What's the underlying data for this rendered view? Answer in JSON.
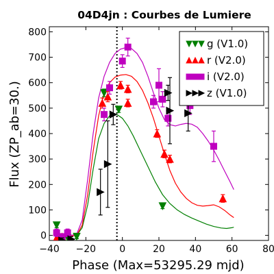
{
  "chart_data": {
    "type": "scatter",
    "title": "04D4jn : Courbes de Lumiere",
    "xlabel": "Phase (Max=53295.29 mjd)",
    "ylabel": "Flux (ZP_ab=30.)",
    "xlim": [
      -40,
      80
    ],
    "ylim": [
      -20,
      820
    ],
    "xticks": [
      -40,
      -20,
      0,
      20,
      40,
      60,
      80
    ],
    "xtick_labels": [
      "−40",
      "−20",
      "0",
      "20",
      "40",
      "60",
      "80"
    ],
    "yticks": [
      0,
      100,
      200,
      300,
      400,
      500,
      600,
      700,
      800
    ],
    "ytick_labels": [
      "0",
      "100",
      "200",
      "300",
      "400",
      "500",
      "600",
      "700",
      "800"
    ],
    "max_line_x": -3,
    "legend_position": "top-right",
    "series": [
      {
        "name": "g (V1.0)",
        "color": "#007f00",
        "marker": "triangle-down",
        "points": [
          {
            "x": -36,
            "y": 40,
            "err": 10
          },
          {
            "x": -30,
            "y": -10,
            "err": 10
          },
          {
            "x": -25,
            "y": -5,
            "err": 8
          },
          {
            "x": -10,
            "y": 560,
            "err": 15
          },
          {
            "x": -2,
            "y": 495,
            "err": 12
          },
          {
            "x": 22,
            "y": 115,
            "err": 10
          }
        ],
        "curve": [
          [
            -37,
            0
          ],
          [
            -30,
            -3
          ],
          [
            -25,
            0
          ],
          [
            -22,
            30
          ],
          [
            -19,
            120
          ],
          [
            -16,
            260
          ],
          [
            -13,
            380
          ],
          [
            -10,
            440
          ],
          [
            -7,
            470
          ],
          [
            -5,
            478
          ],
          [
            -3,
            475
          ],
          [
            0,
            460
          ],
          [
            3,
            430
          ],
          [
            6,
            390
          ],
          [
            10,
            330
          ],
          [
            14,
            270
          ],
          [
            18,
            210
          ],
          [
            22,
            160
          ],
          [
            26,
            125
          ],
          [
            30,
            100
          ],
          [
            34,
            82
          ],
          [
            38,
            68
          ],
          [
            42,
            56
          ],
          [
            46,
            44
          ],
          [
            50,
            35
          ],
          [
            54,
            29
          ],
          [
            57,
            27
          ],
          [
            60,
            30
          ],
          [
            61,
            32
          ]
        ]
      },
      {
        "name": "r (V2.0)",
        "color": "#ff0000",
        "marker": "triangle-up",
        "points": [
          {
            "x": -36,
            "y": -10,
            "err": 10
          },
          {
            "x": -33,
            "y": -5,
            "err": 10
          },
          {
            "x": -11,
            "y": 520,
            "err": 20
          },
          {
            "x": -8,
            "y": 545,
            "err": 20
          },
          {
            "x": -1,
            "y": 590,
            "err": 15
          },
          {
            "x": 3,
            "y": 575,
            "err": 15
          },
          {
            "x": 3,
            "y": 520,
            "err": 15
          },
          {
            "x": 19,
            "y": 400,
            "err": 15
          },
          {
            "x": 23,
            "y": 320,
            "err": 15
          },
          {
            "x": 26,
            "y": 300,
            "err": 15
          },
          {
            "x": 55,
            "y": 145,
            "err": 15
          }
        ],
        "curve": [
          [
            -37,
            0
          ],
          [
            -30,
            -3
          ],
          [
            -25,
            0
          ],
          [
            -22,
            40
          ],
          [
            -19,
            160
          ],
          [
            -16,
            330
          ],
          [
            -13,
            470
          ],
          [
            -10,
            560
          ],
          [
            -7,
            600
          ],
          [
            -4,
            622
          ],
          [
            -1,
            630
          ],
          [
            2,
            632
          ],
          [
            5,
            625
          ],
          [
            8,
            605
          ],
          [
            11,
            570
          ],
          [
            14,
            520
          ],
          [
            17,
            460
          ],
          [
            20,
            390
          ],
          [
            23,
            320
          ],
          [
            26,
            255
          ],
          [
            29,
            205
          ],
          [
            32,
            170
          ],
          [
            35,
            145
          ],
          [
            38,
            128
          ],
          [
            41,
            118
          ],
          [
            44,
            115
          ],
          [
            47,
            117
          ],
          [
            50,
            120
          ],
          [
            53,
            112
          ],
          [
            56,
            98
          ],
          [
            59,
            80
          ],
          [
            61,
            70
          ]
        ]
      },
      {
        "name": "i (V2.0)",
        "color": "#bf00bf",
        "marker": "square",
        "points": [
          {
            "x": -36,
            "y": 10,
            "err": 15
          },
          {
            "x": -30,
            "y": 10,
            "err": 15
          },
          {
            "x": -33,
            "y": -5,
            "err": 10
          },
          {
            "x": -10,
            "y": 475,
            "err": 25
          },
          {
            "x": -7,
            "y": 580,
            "err": 25
          },
          {
            "x": 0,
            "y": 685,
            "err": 25
          },
          {
            "x": 3,
            "y": 740,
            "err": 35
          },
          {
            "x": 17,
            "y": 525,
            "err": 25
          },
          {
            "x": 20,
            "y": 590,
            "err": 65
          },
          {
            "x": 22,
            "y": 535,
            "err": 30
          },
          {
            "x": 25,
            "y": 460,
            "err": 30
          },
          {
            "x": 37,
            "y": 510,
            "err": 35
          },
          {
            "x": 50,
            "y": 350,
            "err": 60
          }
        ],
        "curve": [
          [
            -37,
            0
          ],
          [
            -30,
            -3
          ],
          [
            -25,
            5
          ],
          [
            -22,
            60
          ],
          [
            -19,
            220
          ],
          [
            -16,
            400
          ],
          [
            -13,
            540
          ],
          [
            -10,
            625
          ],
          [
            -7,
            680
          ],
          [
            -4,
            715
          ],
          [
            -1,
            732
          ],
          [
            2,
            738
          ],
          [
            5,
            734
          ],
          [
            8,
            715
          ],
          [
            11,
            680
          ],
          [
            14,
            625
          ],
          [
            17,
            560
          ],
          [
            20,
            500
          ],
          [
            23,
            455
          ],
          [
            26,
            435
          ],
          [
            29,
            430
          ],
          [
            32,
            436
          ],
          [
            35,
            440
          ],
          [
            38,
            437
          ],
          [
            41,
            425
          ],
          [
            44,
            400
          ],
          [
            47,
            370
          ],
          [
            50,
            335
          ],
          [
            53,
            295
          ],
          [
            56,
            252
          ],
          [
            59,
            210
          ],
          [
            61,
            180
          ]
        ]
      },
      {
        "name": "z (V1.0)",
        "color": "#000000",
        "marker": "triangle-right",
        "points": [
          {
            "x": -33,
            "y": -20,
            "err": 10
          },
          {
            "x": -28,
            "y": -15,
            "err": 10
          },
          {
            "x": -12,
            "y": 170,
            "err": 90
          },
          {
            "x": -8,
            "y": 280,
            "err": 170
          },
          {
            "x": -5,
            "y": 475,
            "err": 40
          },
          {
            "x": 25,
            "y": 560,
            "err": 30
          },
          {
            "x": 26,
            "y": 490,
            "err": 130
          },
          {
            "x": 36,
            "y": 480,
            "err": 70
          }
        ],
        "curve": []
      }
    ]
  }
}
